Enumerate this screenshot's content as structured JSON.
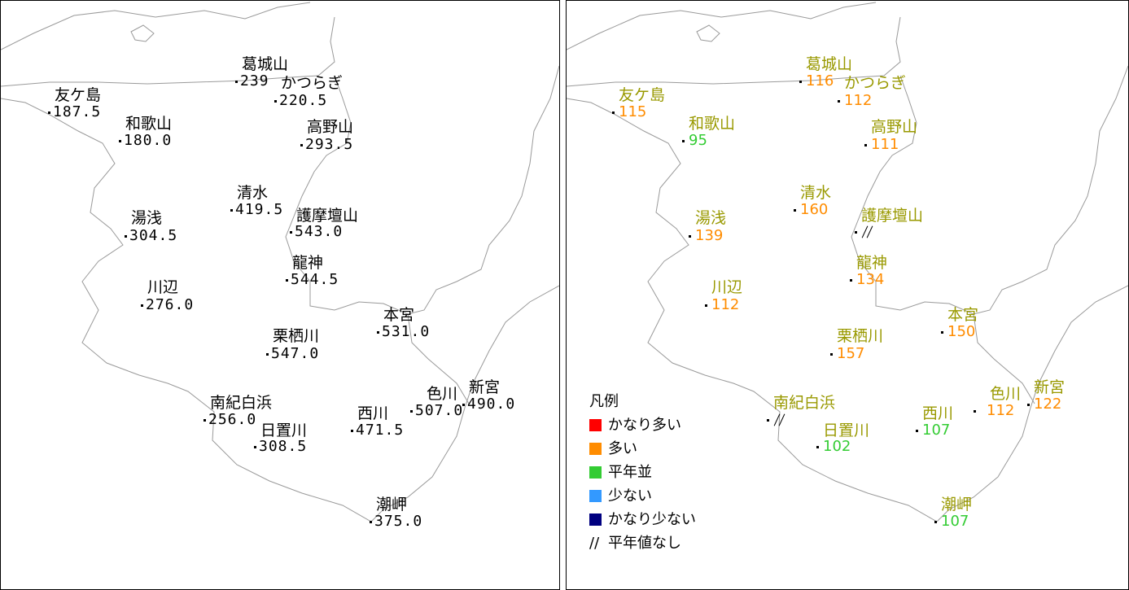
{
  "left_map": {
    "stations": [
      {
        "name": "葛城山",
        "value": "239"
      },
      {
        "name": "かつらぎ",
        "value": "220.5"
      },
      {
        "name": "友ケ島",
        "value": "187.5"
      },
      {
        "name": "和歌山",
        "value": "180.0"
      },
      {
        "name": "高野山",
        "value": "293.5"
      },
      {
        "name": "清水",
        "value": "419.5"
      },
      {
        "name": "護摩壇山",
        "value": "543.0"
      },
      {
        "name": "湯浅",
        "value": "304.5"
      },
      {
        "name": "龍神",
        "value": "544.5"
      },
      {
        "name": "川辺",
        "value": "276.0"
      },
      {
        "name": "本宮",
        "value": "531.0"
      },
      {
        "name": "栗栖川",
        "value": "547.0"
      },
      {
        "name": "新宮",
        "value": "490.0"
      },
      {
        "name": "色川",
        "value": "507.0"
      },
      {
        "name": "南紀白浜",
        "value": "256.0"
      },
      {
        "name": "西川",
        "value": "471.5"
      },
      {
        "name": "日置川",
        "value": "308.5"
      },
      {
        "name": "潮岬",
        "value": "375.0"
      }
    ]
  },
  "right_map": {
    "stations": [
      {
        "name": "葛城山",
        "value": "116",
        "category": "多い"
      },
      {
        "name": "かつらぎ",
        "value": "112",
        "category": "多い"
      },
      {
        "name": "友ケ島",
        "value": "115",
        "category": "多い"
      },
      {
        "name": "和歌山",
        "value": "95",
        "category": "平年並"
      },
      {
        "name": "高野山",
        "value": "111",
        "category": "多い"
      },
      {
        "name": "清水",
        "value": "160",
        "category": "多い"
      },
      {
        "name": "護摩壇山",
        "value": "",
        "category": "平年値なし"
      },
      {
        "name": "湯浅",
        "value": "139",
        "category": "多い"
      },
      {
        "name": "龍神",
        "value": "134",
        "category": "多い"
      },
      {
        "name": "川辺",
        "value": "112",
        "category": "多い"
      },
      {
        "name": "本宮",
        "value": "150",
        "category": "多い"
      },
      {
        "name": "栗栖川",
        "value": "157",
        "category": "多い"
      },
      {
        "name": "新宮",
        "value": "122",
        "category": "多い"
      },
      {
        "name": "色川",
        "value": "112",
        "category": "多い"
      },
      {
        "name": "南紀白浜",
        "value": "",
        "category": "平年値なし"
      },
      {
        "name": "西川",
        "value": "107",
        "category": "平年並"
      },
      {
        "name": "日置川",
        "value": "102",
        "category": "平年並"
      },
      {
        "name": "潮岬",
        "value": "107",
        "category": "平年並"
      }
    ]
  },
  "legend": {
    "title": "凡例",
    "items": [
      {
        "label": "かなり多い",
        "color": "#ff0000"
      },
      {
        "label": "多い",
        "color": "#ff8c00"
      },
      {
        "label": "平年並",
        "color": "#33cc33"
      },
      {
        "label": "少ない",
        "color": "#3399ff"
      },
      {
        "label": "かなり少ない",
        "color": "#000080"
      },
      {
        "label": "平年値なし",
        "symbol": "//"
      }
    ]
  },
  "category_colors": {
    "かなり多い": "#ff0000",
    "多い": "#ff8c00",
    "平年並": "#33cc33",
    "少ない": "#3399ff",
    "かなり少ない": "#000080"
  }
}
